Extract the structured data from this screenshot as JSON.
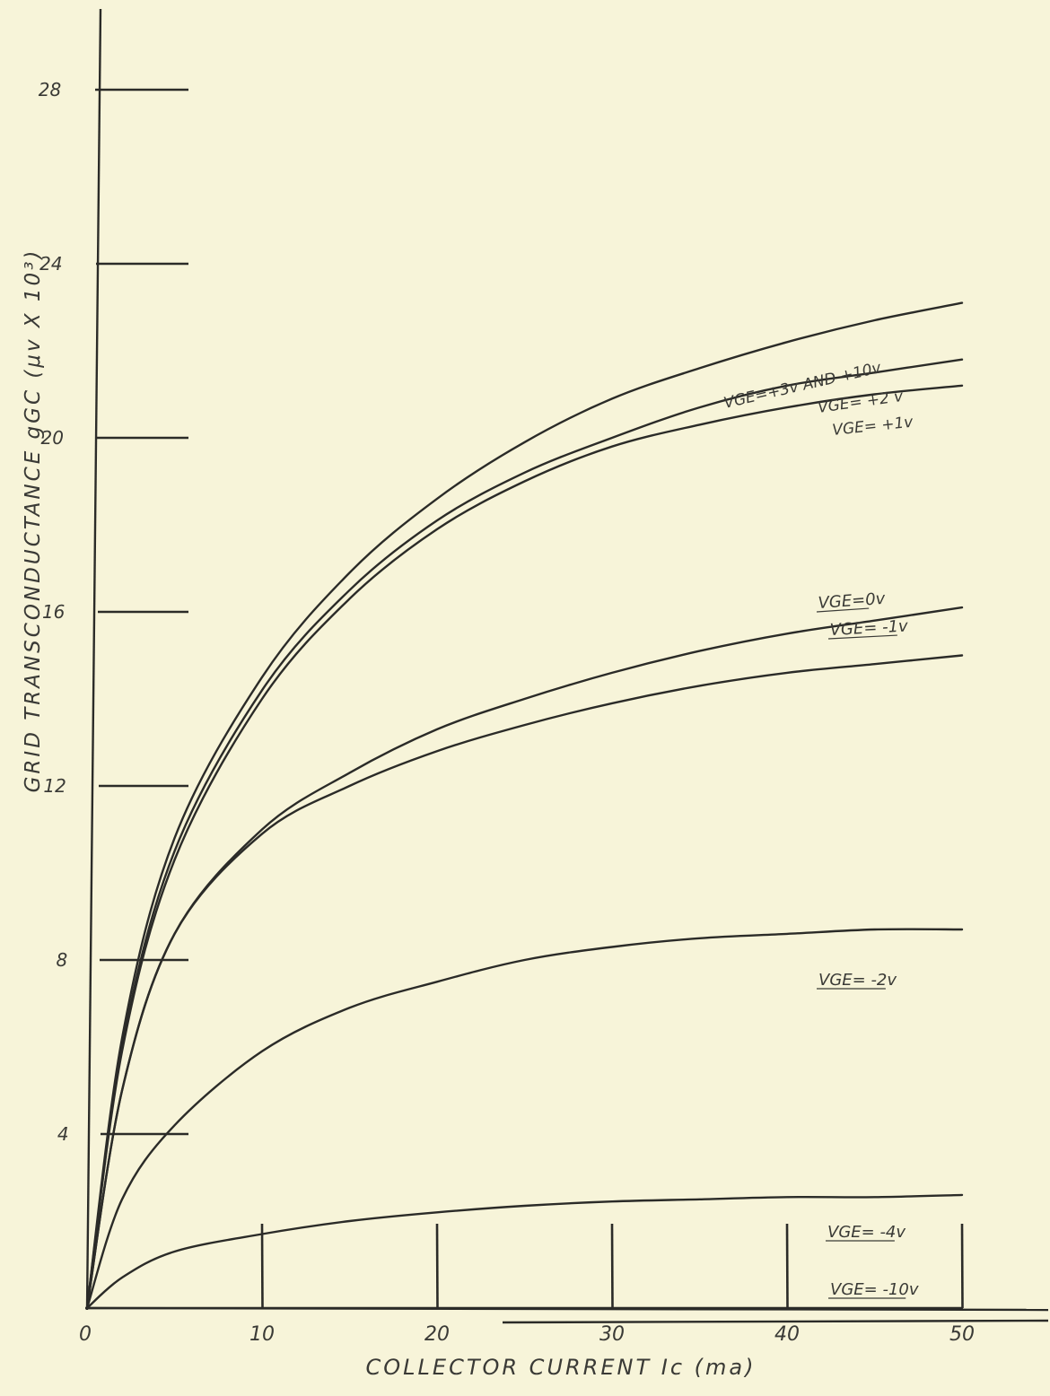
{
  "chart_data": {
    "type": "line",
    "title": "",
    "xlabel": "COLLECTOR CURRENT  Ic (ma)",
    "ylabel": "GRID TRANSCONDUCTANCE  gGC (μv X 10³)",
    "xlim": [
      0,
      55
    ],
    "ylim": [
      0,
      30
    ],
    "x_ticks": [
      "0",
      "10",
      "20",
      "30",
      "40",
      "50"
    ],
    "y_ticks": [
      "4",
      "8",
      "12",
      "16",
      "20",
      "24",
      "28"
    ],
    "grid": false,
    "series": [
      {
        "name": "VGE=+3v AND +10v",
        "x": [
          0,
          2,
          5,
          10,
          15,
          20,
          25,
          30,
          35,
          40,
          45,
          50
        ],
        "y": [
          0,
          6.2,
          10.8,
          14.5,
          16.9,
          18.6,
          19.9,
          20.9,
          21.6,
          22.2,
          22.7,
          23.1
        ]
      },
      {
        "name": "VGE=+2v",
        "x": [
          0,
          2,
          5,
          10,
          15,
          20,
          25,
          30,
          35,
          40,
          45,
          50
        ],
        "y": [
          0,
          6.0,
          10.5,
          14.2,
          16.5,
          18.1,
          19.2,
          20.0,
          20.7,
          21.2,
          21.5,
          21.8
        ]
      },
      {
        "name": "VGE=+1v",
        "x": [
          0,
          2,
          5,
          10,
          15,
          20,
          25,
          30,
          35,
          40,
          45,
          50
        ],
        "y": [
          0,
          5.9,
          10.3,
          14.0,
          16.3,
          17.9,
          19.0,
          19.8,
          20.3,
          20.7,
          21.0,
          21.2
        ]
      },
      {
        "name": "VGE=0v",
        "x": [
          0,
          2,
          5,
          10,
          15,
          20,
          25,
          30,
          35,
          40,
          45,
          50
        ],
        "y": [
          0,
          5.0,
          8.6,
          11.0,
          12.3,
          13.3,
          14.0,
          14.6,
          15.1,
          15.5,
          15.8,
          16.1
        ]
      },
      {
        "name": "VGE=-1v",
        "x": [
          0,
          2,
          5,
          10,
          15,
          20,
          25,
          30,
          35,
          40,
          45,
          50
        ],
        "y": [
          0,
          5.0,
          8.6,
          10.9,
          12.0,
          12.8,
          13.4,
          13.9,
          14.3,
          14.6,
          14.8,
          15.0
        ]
      },
      {
        "name": "VGE=-2v",
        "x": [
          0,
          2,
          5,
          10,
          15,
          20,
          25,
          30,
          35,
          40,
          45,
          50
        ],
        "y": [
          0,
          2.5,
          4.2,
          5.9,
          6.9,
          7.5,
          8.0,
          8.3,
          8.5,
          8.6,
          8.7,
          8.7
        ]
      },
      {
        "name": "VGE=-4v",
        "x": [
          0,
          2,
          5,
          10,
          15,
          20,
          25,
          30,
          35,
          40,
          45,
          50
        ],
        "y": [
          0,
          0.7,
          1.3,
          1.7,
          2.0,
          2.2,
          2.35,
          2.45,
          2.5,
          2.55,
          2.55,
          2.6
        ]
      },
      {
        "name": "VGE=-10v",
        "x": [
          0,
          10,
          20,
          30,
          40,
          50
        ],
        "y": [
          0,
          0,
          0,
          0,
          0,
          0
        ]
      }
    ],
    "labels": [
      {
        "text": "VGE=+3v AND +10v",
        "series": 0
      },
      {
        "text": "VGE= +2 v",
        "series": 1
      },
      {
        "text": "VGE= +1v",
        "series": 2
      },
      {
        "text": "VGE=0v",
        "series": 3
      },
      {
        "text": "VGE= -1v",
        "series": 4
      },
      {
        "text": "VGE= -2v",
        "series": 5
      },
      {
        "text": "VGE= -4v",
        "series": 6
      },
      {
        "text": "VGE= -10v",
        "series": 7
      }
    ]
  }
}
